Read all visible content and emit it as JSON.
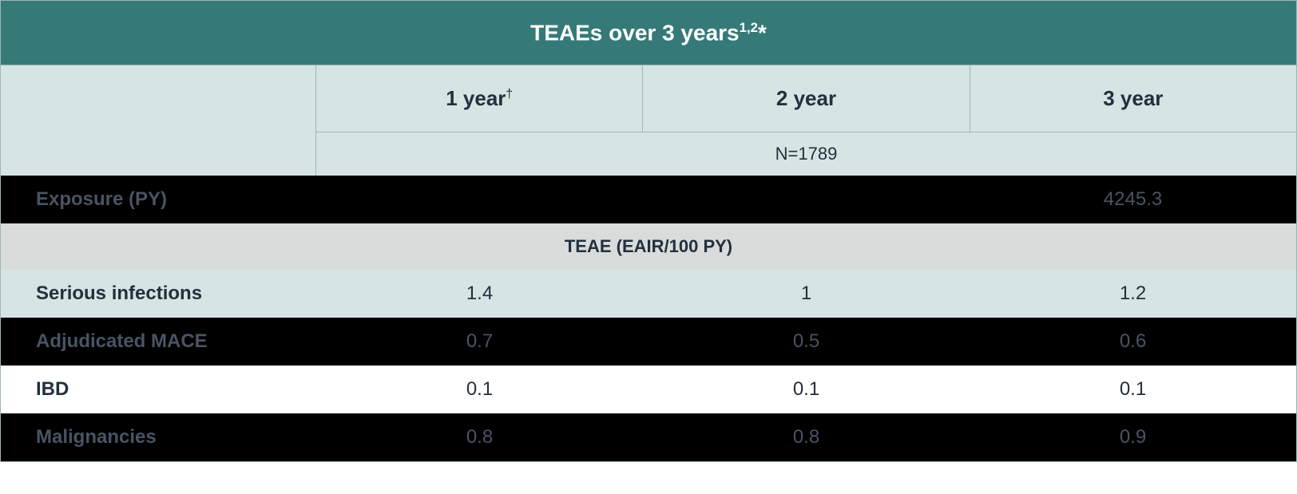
{
  "colors": {
    "title_bg": "#367a78",
    "title_text": "#ffffff",
    "header_bg": "#d6e4e3",
    "header_text": "#23303d",
    "n_bg": "#d6e4e3",
    "n_text": "#23303d",
    "section_bg": "#d9dcdb",
    "section_text": "#23303d",
    "black_bg": "#000000",
    "black_text": "#4a5363",
    "light_bg": "#d6e4e3",
    "light_text": "#23303d",
    "white_bg": "#ffffff",
    "white_text": "#23303d",
    "border": "#9eb7b3"
  },
  "table": {
    "title_main": "TEAEs over 3 years",
    "title_sup": "1,2",
    "title_after_sup": "*",
    "columns": [
      {
        "label": "1 year",
        "sup": "†"
      },
      {
        "label": "2 year",
        "sup": ""
      },
      {
        "label": "3 year",
        "sup": ""
      }
    ],
    "n_label": "N=1789",
    "exposure": {
      "label": "Exposure (PY)",
      "values": [
        "",
        "",
        "4245.3"
      ],
      "style": "black"
    },
    "section_header": "TEAE (EAIR/100 PY)",
    "rows": [
      {
        "label": "Serious infections",
        "values": [
          "1.4",
          "1",
          "1.2"
        ],
        "style": "light"
      },
      {
        "label": "Adjudicated MACE",
        "values": [
          "0.7",
          "0.5",
          "0.6"
        ],
        "style": "black"
      },
      {
        "label": "IBD",
        "values": [
          "0.1",
          "0.1",
          "0.1"
        ],
        "style": "white"
      },
      {
        "label": "Malignancies",
        "values": [
          "0.8",
          "0.8",
          "0.9"
        ],
        "style": "black"
      }
    ]
  }
}
